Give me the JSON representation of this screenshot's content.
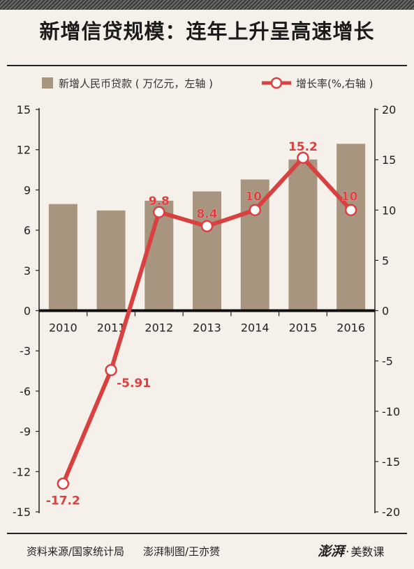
{
  "chart_data": {
    "type": "bar",
    "title": "新增信贷规模：连年上升呈高速增长",
    "categories": [
      "2010",
      "2011",
      "2012",
      "2013",
      "2014",
      "2015",
      "2016"
    ],
    "series": [
      {
        "name": "新增人民币贷款 ( 万亿元，左轴 )",
        "type": "bar",
        "axis": "left",
        "color": "#a89580",
        "values": [
          7.95,
          7.47,
          8.2,
          8.89,
          9.78,
          11.27,
          12.44
        ]
      },
      {
        "name": "增长率(%,右轴 )",
        "type": "line",
        "axis": "right",
        "color": "#d94040",
        "values": [
          -17.2,
          -5.91,
          9.8,
          8.4,
          10,
          15.2,
          10
        ],
        "labels": [
          "-17.2",
          "-5.91",
          "9.8",
          "8.4",
          "10",
          "15.2",
          "10"
        ]
      }
    ],
    "left_axis": {
      "ylim": [
        -15,
        15
      ],
      "ticks": [
        "15",
        "12",
        "9",
        "6",
        "3",
        "0",
        "-3",
        "-6",
        "-9",
        "-12",
        "-15"
      ]
    },
    "right_axis": {
      "ylim": [
        -20,
        20
      ],
      "ticks": [
        "20",
        "15",
        "10",
        "5",
        "0",
        "-5",
        "-10",
        "-15",
        "-20"
      ]
    },
    "legend_position": "top",
    "grid": false
  },
  "footer": {
    "source": "资料来源/国家统计局",
    "credit": "澎湃制图/王亦赟",
    "logo_main": "澎湃",
    "logo_sub": "美数课"
  }
}
